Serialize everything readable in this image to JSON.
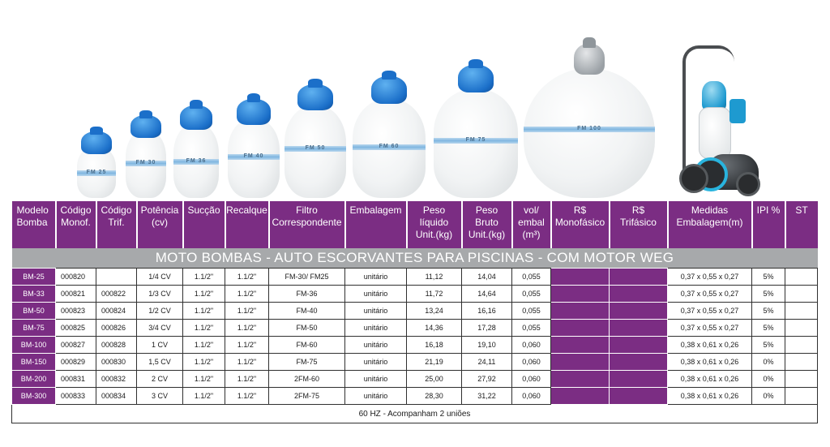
{
  "product_images": {
    "filter_labels": [
      "FM 25",
      "FM 30",
      "FM 36",
      "FM 40",
      "FM 50",
      "FM 60",
      "FM 75",
      "FM 100"
    ]
  },
  "table": {
    "headers": [
      "Modelo\nBomba",
      "Código\nMonof.",
      "Código\nTrif.",
      "Potência\n(cv)",
      "Sucção",
      "Recalque",
      "Filtro\nCorrespondente",
      "Embalagem",
      "Peso\nlíquido\nUnit.(kg)",
      "Peso\nBruto\nUnit.(kg)",
      "vol/\nembal\n(m³)",
      "R$\nMonofásico",
      "R$\nTrifásico",
      "Medidas\nEmbalagem(m)",
      "IPI %",
      "ST"
    ],
    "banner": "MOTO BOMBAS - AUTO ESCORVANTES PARA PISCINAS  - COM MOTOR WEG",
    "rows": [
      [
        "BM-25",
        "000820",
        "",
        "1/4 CV",
        "1.1/2\"",
        "1.1/2\"",
        "FM-30/ FM25",
        "unitário",
        "11,12",
        "14,04",
        "0,055",
        "",
        "",
        "0,37 x 0,55 x 0,27",
        "5%",
        ""
      ],
      [
        "BM-33",
        "000821",
        "000822",
        "1/3 CV",
        "1.1/2\"",
        "1.1/2\"",
        "FM-36",
        "unitário",
        "11,72",
        "14,64",
        "0,055",
        "",
        "",
        "0,37 x 0,55 x 0,27",
        "5%",
        ""
      ],
      [
        "BM-50",
        "000823",
        "000824",
        "1/2 CV",
        "1.1/2\"",
        "1.1/2\"",
        "FM-40",
        "unitário",
        "13,24",
        "16,16",
        "0,055",
        "",
        "",
        "0,37 x 0,55 x 0,27",
        "5%",
        ""
      ],
      [
        "BM-75",
        "000825",
        "000826",
        "3/4 CV",
        "1.1/2\"",
        "1.1/2\"",
        "FM-50",
        "unitário",
        "14,36",
        "17,28",
        "0,055",
        "",
        "",
        "0,37 x 0,55 x 0,27",
        "5%",
        ""
      ],
      [
        "BM-100",
        "000827",
        "000828",
        "1 CV",
        "1.1/2\"",
        "1.1/2\"",
        "FM-60",
        "unitário",
        "16,18",
        "19,10",
        "0,060",
        "",
        "",
        "0,38 x 0,61 x 0,26",
        "5%",
        ""
      ],
      [
        "BM-150",
        "000829",
        "000830",
        "1,5 CV",
        "1.1/2\"",
        "1.1/2\"",
        "FM-75",
        "unitário",
        "21,19",
        "24,11",
        "0,060",
        "",
        "",
        "0,38 x 0,61 x 0,26",
        "0%",
        ""
      ],
      [
        "BM-200",
        "000831",
        "000832",
        "2 CV",
        "1.1/2\"",
        "1.1/2\"",
        "2FM-60",
        "unitário",
        "25,00",
        "27,92",
        "0,060",
        "",
        "",
        "0,38 x 0,61 x 0,26",
        "0%",
        ""
      ],
      [
        "BM-300",
        "000833",
        "000834",
        "3 CV",
        "1.1/2\"",
        "1.1/2\"",
        "2FM-75",
        "unitário",
        "28,30",
        "31,22",
        "0,060",
        "",
        "",
        "0,38 x 0,61 x 0,26",
        "0%",
        ""
      ]
    ],
    "footer": "60 HZ - Acompanham 2 uniões"
  },
  "colors": {
    "header_purple": "#7b2d83",
    "banner_grey": "#a7a9ab",
    "valve_blue": "#1b6fc9",
    "band_blue": "#7fb6e0"
  }
}
